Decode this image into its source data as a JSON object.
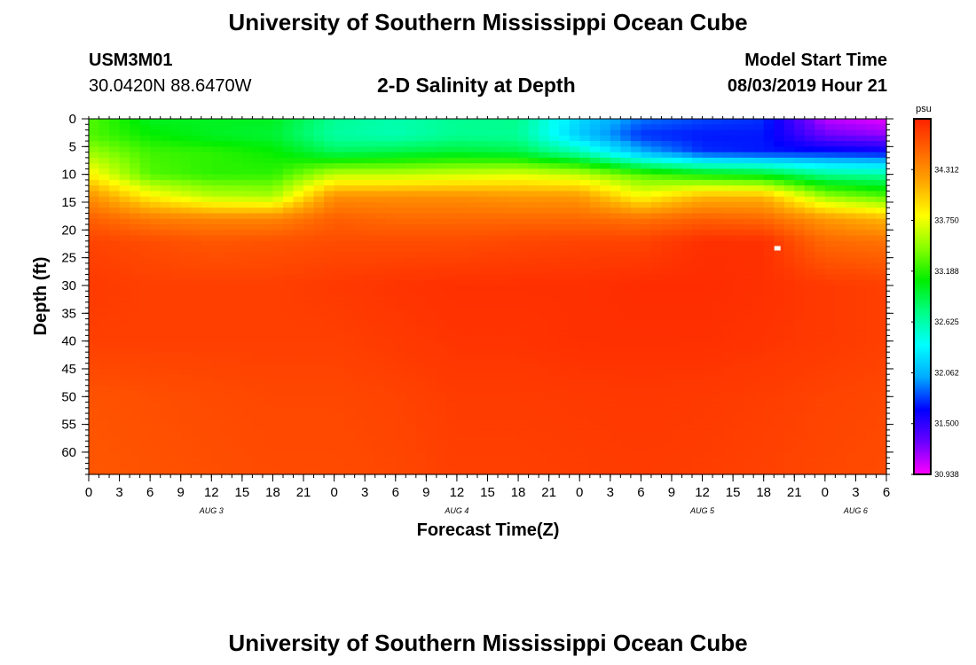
{
  "header": {
    "title": "University of Southern Mississippi Ocean Cube",
    "station_id": "USM3M01",
    "coordinates": "30.0420N 88.6470W",
    "chart_title": "2-D Salinity at Depth",
    "start_label": "Model Start Time",
    "start_value": "08/03/2019 Hour 21"
  },
  "footer": {
    "title": "University of Southern Mississippi Ocean Cube"
  },
  "chart_data": {
    "type": "heatmap",
    "title": "2-D Salinity at Depth",
    "xlabel": "Forecast Time(Z)",
    "ylabel": "Depth (ft)",
    "x_ticks": [
      "0",
      "3",
      "6",
      "9",
      "12",
      "15",
      "18",
      "21",
      "0",
      "3",
      "6",
      "9",
      "12",
      "15",
      "18",
      "21",
      "0",
      "3",
      "6",
      "9",
      "12",
      "15",
      "18",
      "21",
      "0",
      "3",
      "6"
    ],
    "day_labels": [
      "AUG 3",
      "AUG 4",
      "AUG 5",
      "AUG 6"
    ],
    "day_label_hours": [
      12,
      36,
      60,
      75
    ],
    "x_range_hours": [
      0,
      78
    ],
    "y_ticks": [
      "0",
      "5",
      "10",
      "15",
      "20",
      "25",
      "30",
      "35",
      "40",
      "45",
      "50",
      "55",
      "60"
    ],
    "y_range": [
      0,
      64
    ],
    "colorbar": {
      "unit": "psu",
      "min": 30.938,
      "max": 34.874,
      "labels": [
        "34.312",
        "33.750",
        "33.188",
        "32.625",
        "32.062",
        "31.500",
        "30.938"
      ],
      "colors": [
        "#ff00ff",
        "#6a00ff",
        "#0000ff",
        "#00aaff",
        "#00ffff",
        "#00ff88",
        "#00ee00",
        "#88ff00",
        "#ffff00",
        "#ffaa00",
        "#ff6600",
        "#ff2200"
      ]
    },
    "salinity_field": {
      "hours": [
        0,
        6,
        12,
        18,
        24,
        30,
        36,
        42,
        48,
        54,
        60,
        66,
        72,
        78
      ],
      "depths": [
        0,
        3,
        6,
        10,
        14,
        18,
        22,
        30,
        40,
        50,
        64
      ],
      "values": [
        [
          33.3,
          33.0,
          33.0,
          33.0,
          32.7,
          32.62,
          32.7,
          32.72,
          32.2,
          31.9,
          31.8,
          31.75,
          31.1,
          31.0
        ],
        [
          33.3,
          33.1,
          33.0,
          32.95,
          32.65,
          32.6,
          32.7,
          32.68,
          32.15,
          31.75,
          31.7,
          31.7,
          31.3,
          31.2
        ],
        [
          33.5,
          33.25,
          33.2,
          33.1,
          32.85,
          32.9,
          32.95,
          32.9,
          32.6,
          32.05,
          31.75,
          31.7,
          31.7,
          31.65
        ],
        [
          33.85,
          33.3,
          33.2,
          33.2,
          33.6,
          33.6,
          33.65,
          33.7,
          33.6,
          33.3,
          33.1,
          33.0,
          32.7,
          32.65
        ],
        [
          34.3,
          33.85,
          33.6,
          33.55,
          34.3,
          34.3,
          34.3,
          34.25,
          34.25,
          33.8,
          34.1,
          34.1,
          33.5,
          33.3
        ],
        [
          34.55,
          34.4,
          34.35,
          34.35,
          34.55,
          34.5,
          34.5,
          34.5,
          34.5,
          34.45,
          34.55,
          34.5,
          34.25,
          34.1
        ],
        [
          34.7,
          34.65,
          34.6,
          34.62,
          34.65,
          34.65,
          34.65,
          34.68,
          34.7,
          34.7,
          34.8,
          34.8,
          34.5,
          34.45
        ],
        [
          34.75,
          34.72,
          34.72,
          34.72,
          34.75,
          34.78,
          34.8,
          34.8,
          34.8,
          34.82,
          34.82,
          34.8,
          34.75,
          34.72
        ],
        [
          34.72,
          34.72,
          34.72,
          34.72,
          34.72,
          34.75,
          34.78,
          34.78,
          34.8,
          34.8,
          34.8,
          34.78,
          34.75,
          34.72
        ],
        [
          34.62,
          34.64,
          34.66,
          34.68,
          34.68,
          34.7,
          34.74,
          34.74,
          34.75,
          34.76,
          34.75,
          34.73,
          34.7,
          34.68
        ],
        [
          34.6,
          34.62,
          34.64,
          34.66,
          34.66,
          34.68,
          34.72,
          34.72,
          34.73,
          34.74,
          34.73,
          34.71,
          34.68,
          34.66
        ]
      ]
    }
  }
}
